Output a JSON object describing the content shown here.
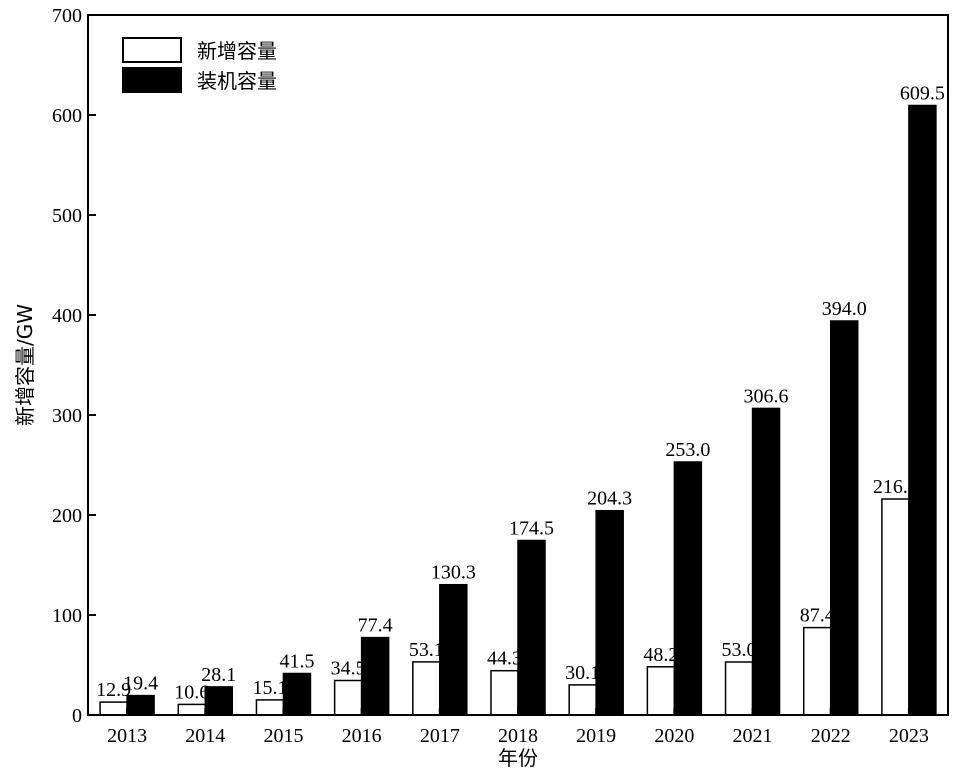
{
  "chart_data": {
    "type": "bar",
    "categories": [
      "2013",
      "2014",
      "2015",
      "2016",
      "2017",
      "2018",
      "2019",
      "2020",
      "2021",
      "2022",
      "2023"
    ],
    "series": [
      {
        "name": "新增容量",
        "color": "#ffffff",
        "values": [
          12.9,
          10.6,
          15.1,
          34.5,
          53.1,
          44.3,
          30.1,
          48.2,
          53.0,
          87.4,
          216.0
        ],
        "labels": [
          "12.9",
          "10.6",
          "15.1",
          "34.5",
          "53.1",
          "44.3",
          "30.1",
          "48.2",
          "53.0",
          "87.4",
          "216.0"
        ]
      },
      {
        "name": "装机容量",
        "color": "#000000",
        "values": [
          19.4,
          28.1,
          41.5,
          77.4,
          130.3,
          174.5,
          204.3,
          253.0,
          306.6,
          394.0,
          609.5
        ],
        "labels": [
          "19.4",
          "28.1",
          "41.5",
          "77.4",
          "130.3",
          "174.5",
          "204.3",
          "253.0",
          "306.6",
          "394.0",
          "609.5"
        ]
      }
    ],
    "xlabel": "年份",
    "ylabel": "新增容量/GW",
    "ylim": [
      0,
      700
    ],
    "yticks": [
      0,
      100,
      200,
      300,
      400,
      500,
      600,
      700
    ],
    "grid": false,
    "legend_position": "top-left"
  }
}
